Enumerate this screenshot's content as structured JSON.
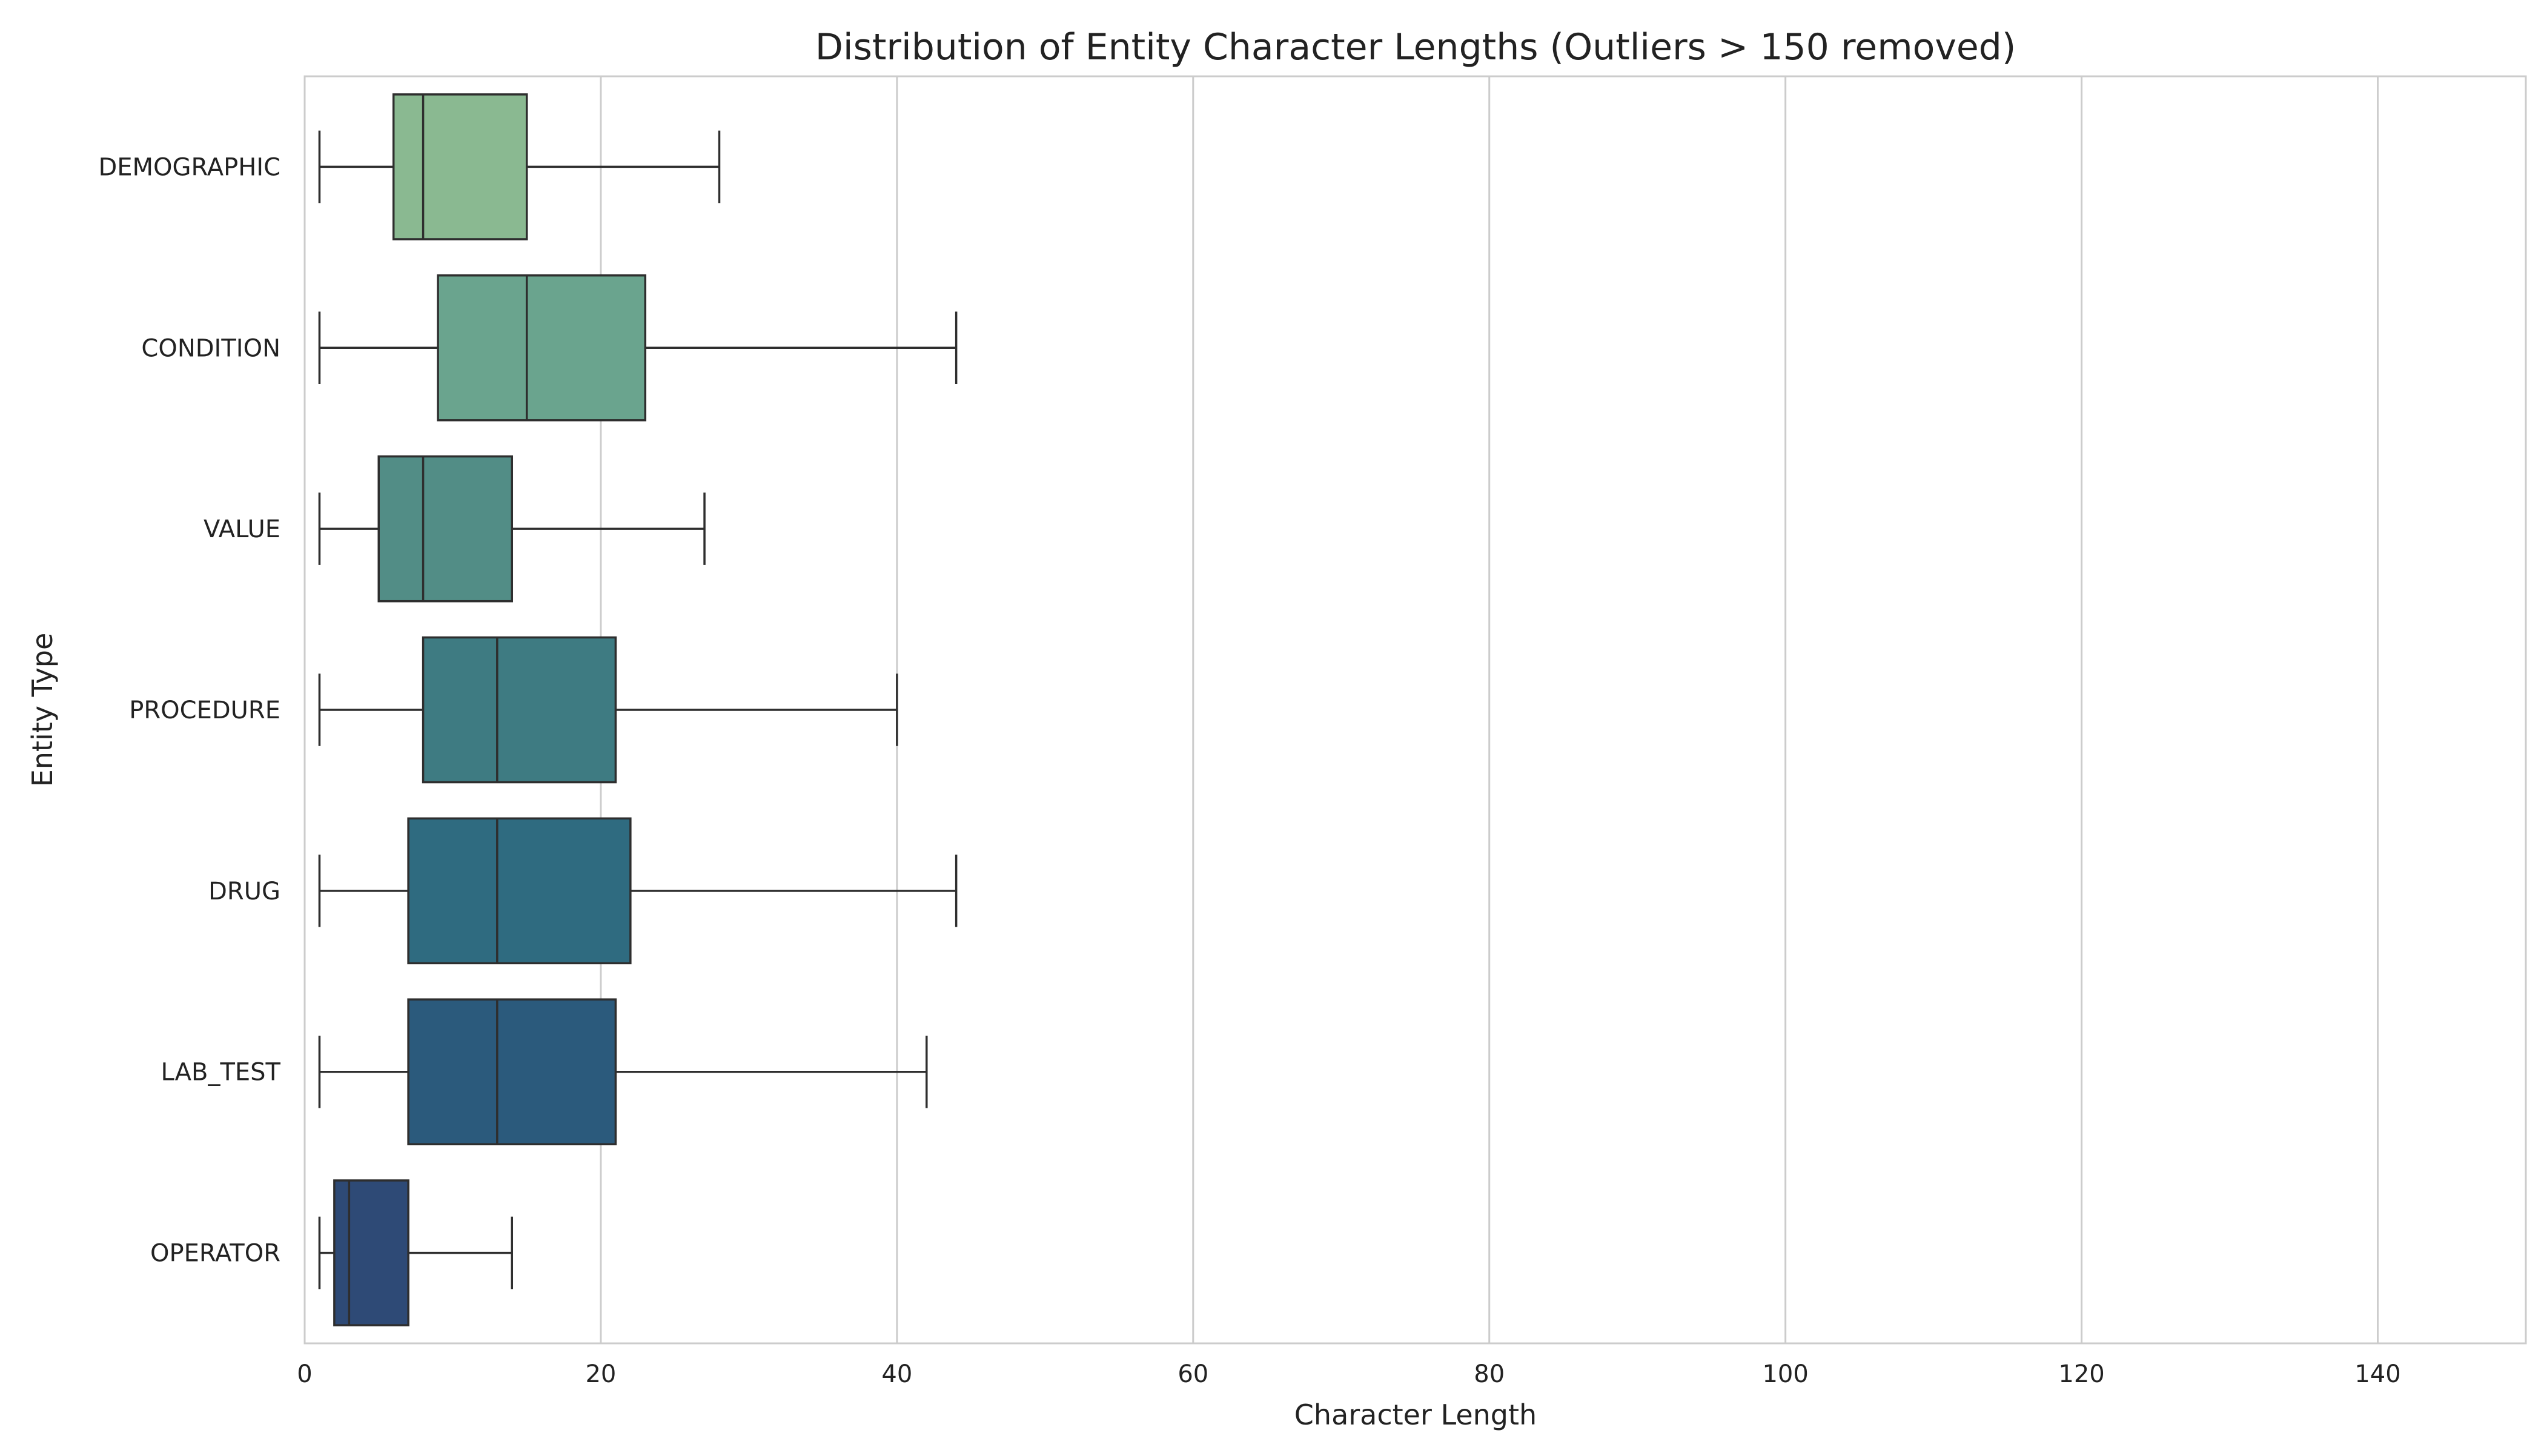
{
  "chart_data": {
    "type": "boxplot",
    "orientation": "horizontal",
    "title": "Distribution of Entity Character Lengths (Outliers > 150 removed)",
    "xlabel": "Character Length",
    "ylabel": "Entity Type",
    "xlim": [
      0,
      150
    ],
    "xticks": [
      0,
      20,
      40,
      60,
      80,
      100,
      120,
      140
    ],
    "grid": "vertical",
    "categories": [
      "DEMOGRAPHIC",
      "CONDITION",
      "VALUE",
      "PROCEDURE",
      "DRUG",
      "LAB_TEST",
      "OPERATOR"
    ],
    "boxes": [
      {
        "category": "DEMOGRAPHIC",
        "min": 1,
        "q1": 6,
        "median": 8,
        "q3": 15,
        "max": 28,
        "color": "#8ab991"
      },
      {
        "category": "CONDITION",
        "min": 1,
        "q1": 9,
        "median": 15,
        "q3": 23,
        "max": 44,
        "color": "#6aa48e"
      },
      {
        "category": "VALUE",
        "min": 1,
        "q1": 5,
        "median": 8,
        "q3": 14,
        "max": 27,
        "color": "#528d86"
      },
      {
        "category": "PROCEDURE",
        "min": 1,
        "q1": 8,
        "median": 13,
        "q3": 21,
        "max": 40,
        "color": "#3e7b82"
      },
      {
        "category": "DRUG",
        "min": 1,
        "q1": 7,
        "median": 13,
        "q3": 22,
        "max": 44,
        "color": "#2f6b80"
      },
      {
        "category": "LAB_TEST",
        "min": 1,
        "q1": 7,
        "median": 13,
        "q3": 21,
        "max": 42,
        "color": "#2b5a7c"
      },
      {
        "category": "OPERATOR",
        "min": 1,
        "q1": 2,
        "median": 3,
        "q3": 7,
        "max": 14,
        "color": "#2e4a76"
      }
    ]
  }
}
